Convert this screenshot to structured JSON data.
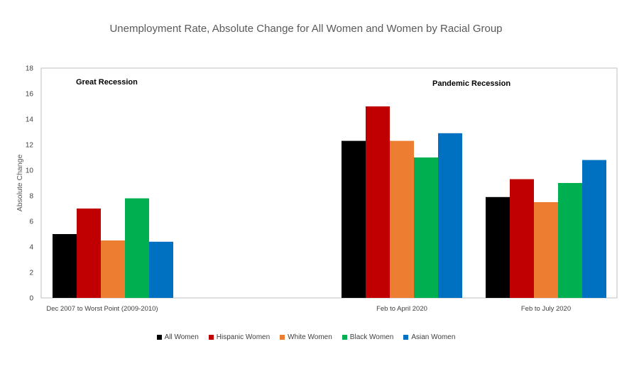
{
  "chart_data": {
    "type": "bar",
    "title": "Unemployment Rate, Absolute Change for All Women and Women by Racial Group",
    "ylabel": "Absolute Change",
    "ylim": [
      0,
      18
    ],
    "yticks": [
      0,
      2,
      4,
      6,
      8,
      10,
      12,
      14,
      16,
      18
    ],
    "categories": [
      "Dec 2007 to Worst Point (2009-2010)",
      "Feb to April 2020",
      "Feb to July 2020"
    ],
    "series": [
      {
        "name": "All Women",
        "color": "#000000",
        "values": [
          5.0,
          12.3,
          7.9
        ]
      },
      {
        "name": "Hispanic Women",
        "color": "#c00000",
        "values": [
          7.0,
          15.0,
          9.3
        ]
      },
      {
        "name": "White Women",
        "color": "#ed7d31",
        "values": [
          4.5,
          12.3,
          7.5
        ]
      },
      {
        "name": "Black Women",
        "color": "#00b050",
        "values": [
          7.8,
          11.0,
          9.0
        ]
      },
      {
        "name": "Asian Women",
        "color": "#0070c0",
        "values": [
          4.4,
          12.9,
          10.8
        ]
      }
    ],
    "annotations": [
      "Great Recession",
      "Pandemic Recession"
    ],
    "grid": false,
    "legend_position": "bottom"
  }
}
